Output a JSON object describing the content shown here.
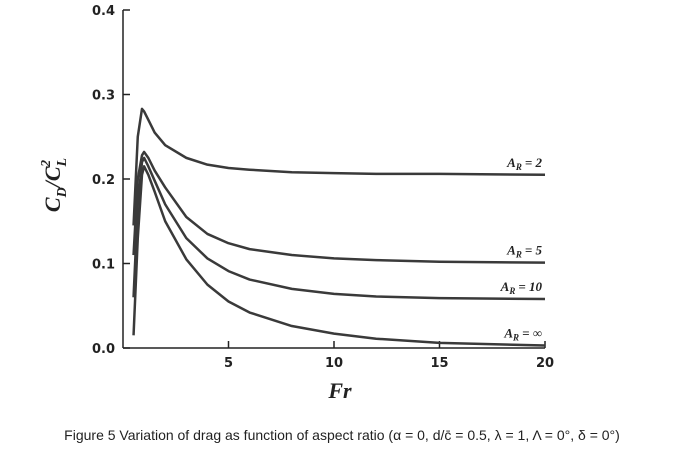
{
  "chart_data": {
    "type": "line",
    "ylabel": [
      "C",
      "D",
      "/C",
      "L",
      "2"
    ],
    "xlabel": "Fr",
    "caption": "Figure 5 Variation of drag as function of aspect ratio (α = 0, d/c̄ = 0.5, λ = 1, Λ = 0°, δ = 0°)",
    "series_label_prefix": [
      "A",
      "R"
    ],
    "x": [
      0.5,
      0.7,
      0.9,
      1.0,
      1.2,
      1.5,
      2,
      3,
      4,
      5,
      6,
      8,
      10,
      12,
      15,
      20
    ],
    "series": [
      {
        "name": "= 2",
        "color": "#3a3a3a",
        "values": [
          0.145,
          0.25,
          0.283,
          0.28,
          0.27,
          0.255,
          0.24,
          0.225,
          0.217,
          0.213,
          0.211,
          0.208,
          0.207,
          0.206,
          0.206,
          0.205
        ]
      },
      {
        "name": "= 5",
        "color": "#3a3a3a",
        "values": [
          0.11,
          0.2,
          0.228,
          0.232,
          0.225,
          0.21,
          0.19,
          0.155,
          0.135,
          0.124,
          0.117,
          0.11,
          0.106,
          0.104,
          0.102,
          0.101
        ]
      },
      {
        "name": "= 10",
        "color": "#3a3a3a",
        "values": [
          0.06,
          0.17,
          0.22,
          0.225,
          0.215,
          0.198,
          0.17,
          0.13,
          0.106,
          0.091,
          0.081,
          0.07,
          0.064,
          0.061,
          0.059,
          0.058
        ]
      },
      {
        "name": "= ∞",
        "color": "#3a3a3a",
        "values": [
          0.015,
          0.13,
          0.205,
          0.215,
          0.205,
          0.185,
          0.15,
          0.105,
          0.075,
          0.055,
          0.042,
          0.026,
          0.017,
          0.011,
          0.006,
          0.003
        ]
      }
    ],
    "xlim": [
      0,
      20
    ],
    "ylim": [
      0,
      0.4
    ],
    "xticks": [
      5,
      10,
      15,
      20
    ],
    "yticks": [
      {
        "value": 0,
        "label": "0.0"
      },
      {
        "value": 0.1,
        "label": "0.1"
      },
      {
        "value": 0.2,
        "label": "0.2"
      },
      {
        "value": 0.3,
        "label": "0.3"
      },
      {
        "value": 0.4,
        "label": "0.4"
      }
    ]
  }
}
